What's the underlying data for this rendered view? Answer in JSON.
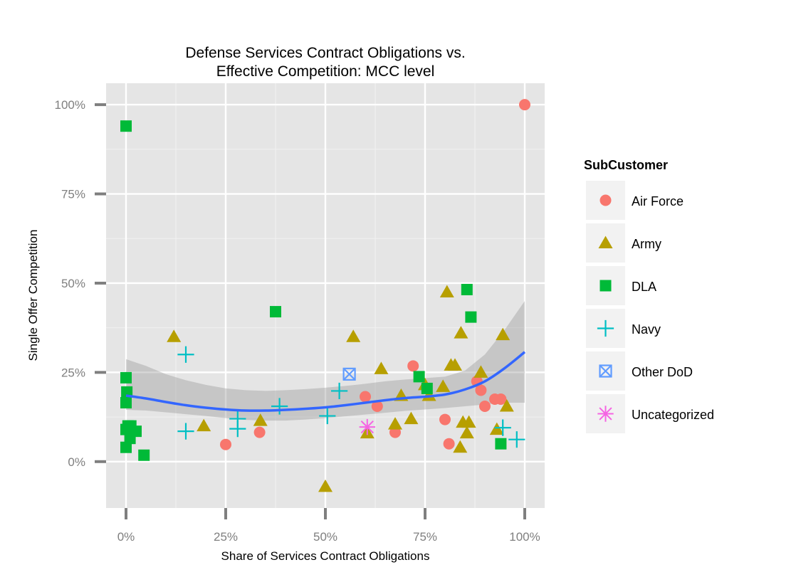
{
  "chart_data": {
    "type": "scatter",
    "title_lines": [
      "Defense Services Contract Obligations vs.",
      "Effective Competition: MCC level"
    ],
    "xlabel": "Share of Services Contract Obligations",
    "ylabel": "Single Offer Competition",
    "xlim": [
      -0.05,
      1.05
    ],
    "ylim": [
      -0.13,
      1.06
    ],
    "x_ticks": [
      {
        "value": 0,
        "label": "0%"
      },
      {
        "value": 0.25,
        "label": "25%"
      },
      {
        "value": 0.5,
        "label": "50%"
      },
      {
        "value": 0.75,
        "label": "75%"
      },
      {
        "value": 1,
        "label": "100%"
      }
    ],
    "y_ticks": [
      {
        "value": 0,
        "label": "0%"
      },
      {
        "value": 0.25,
        "label": "25%"
      },
      {
        "value": 0.5,
        "label": "50%"
      },
      {
        "value": 0.75,
        "label": "75%"
      },
      {
        "value": 1,
        "label": "100%"
      }
    ],
    "grid": true,
    "legend": {
      "title": "SubCustomer",
      "position": "right"
    },
    "series": [
      {
        "name": "Air Force",
        "shape": "circle",
        "color": "#F8766D",
        "points": [
          [
            0.25,
            0.048
          ],
          [
            0.335,
            0.082
          ],
          [
            0.6,
            0.182
          ],
          [
            0.63,
            0.155
          ],
          [
            0.675,
            0.082
          ],
          [
            0.72,
            0.268
          ],
          [
            0.8,
            0.118
          ],
          [
            0.81,
            0.05
          ],
          [
            0.88,
            0.225
          ],
          [
            0.89,
            0.2
          ],
          [
            0.9,
            0.155
          ],
          [
            0.925,
            0.175
          ],
          [
            0.94,
            0.175
          ],
          [
            1.0,
            1.0
          ]
        ]
      },
      {
        "name": "Army",
        "shape": "triangle",
        "color": "#B79F00",
        "points": [
          [
            0.12,
            0.35
          ],
          [
            0.195,
            0.1
          ],
          [
            0.337,
            0.115
          ],
          [
            0.5,
            -0.07
          ],
          [
            0.57,
            0.35
          ],
          [
            0.605,
            0.08
          ],
          [
            0.64,
            0.26
          ],
          [
            0.675,
            0.105
          ],
          [
            0.69,
            0.185
          ],
          [
            0.715,
            0.12
          ],
          [
            0.75,
            0.215
          ],
          [
            0.76,
            0.185
          ],
          [
            0.795,
            0.21
          ],
          [
            0.805,
            0.475
          ],
          [
            0.815,
            0.27
          ],
          [
            0.825,
            0.27
          ],
          [
            0.84,
            0.36
          ],
          [
            0.838,
            0.04
          ],
          [
            0.845,
            0.11
          ],
          [
            0.855,
            0.08
          ],
          [
            0.86,
            0.11
          ],
          [
            0.89,
            0.25
          ],
          [
            0.93,
            0.09
          ],
          [
            0.945,
            0.355
          ],
          [
            0.955,
            0.155
          ]
        ]
      },
      {
        "name": "DLA",
        "shape": "square",
        "color": "#00BA38",
        "points": [
          [
            0.0,
            0.94
          ],
          [
            0.0,
            0.235
          ],
          [
            0.002,
            0.195
          ],
          [
            0.0,
            0.165
          ],
          [
            0.0,
            0.09
          ],
          [
            0.005,
            0.1
          ],
          [
            0.01,
            0.065
          ],
          [
            0.012,
            0.1
          ],
          [
            0.025,
            0.085
          ],
          [
            0.0,
            0.04
          ],
          [
            0.045,
            0.018
          ],
          [
            0.375,
            0.42
          ],
          [
            0.735,
            0.238
          ],
          [
            0.755,
            0.205
          ],
          [
            0.855,
            0.482
          ],
          [
            0.865,
            0.405
          ],
          [
            0.94,
            0.05
          ]
        ]
      },
      {
        "name": "Navy",
        "shape": "plus",
        "color": "#00BFC4",
        "points": [
          [
            0.15,
            0.3
          ],
          [
            0.15,
            0.085
          ],
          [
            0.28,
            0.12
          ],
          [
            0.28,
            0.092
          ],
          [
            0.385,
            0.155
          ],
          [
            0.505,
            0.128
          ],
          [
            0.535,
            0.198
          ],
          [
            0.945,
            0.095
          ],
          [
            0.98,
            0.062
          ]
        ]
      },
      {
        "name": "Other DoD",
        "shape": "square-x",
        "color": "#619CFF",
        "points": [
          [
            0.56,
            0.245
          ]
        ]
      },
      {
        "name": "Uncategorized",
        "shape": "asterisk",
        "color": "#F564E3",
        "points": [
          [
            0.605,
            0.097
          ]
        ]
      }
    ],
    "smooth": {
      "color": "#3366FF",
      "x": [
        0,
        0.05,
        0.1,
        0.15,
        0.2,
        0.25,
        0.3,
        0.35,
        0.4,
        0.45,
        0.5,
        0.55,
        0.6,
        0.65,
        0.7,
        0.75,
        0.8,
        0.85,
        0.9,
        0.95,
        1.0
      ],
      "y": [
        0.185,
        0.177,
        0.167,
        0.158,
        0.151,
        0.146,
        0.143,
        0.143,
        0.145,
        0.148,
        0.152,
        0.158,
        0.165,
        0.172,
        0.178,
        0.182,
        0.188,
        0.202,
        0.225,
        0.262,
        0.307
      ],
      "lower": [
        0.145,
        0.143,
        0.138,
        0.133,
        0.128,
        0.122,
        0.117,
        0.115,
        0.115,
        0.118,
        0.122,
        0.127,
        0.132,
        0.137,
        0.142,
        0.146,
        0.15,
        0.155,
        0.16,
        0.165,
        0.165
      ],
      "upper": [
        0.287,
        0.268,
        0.245,
        0.228,
        0.215,
        0.205,
        0.2,
        0.198,
        0.2,
        0.203,
        0.207,
        0.212,
        0.218,
        0.225,
        0.23,
        0.234,
        0.238,
        0.255,
        0.3,
        0.37,
        0.45
      ]
    }
  }
}
